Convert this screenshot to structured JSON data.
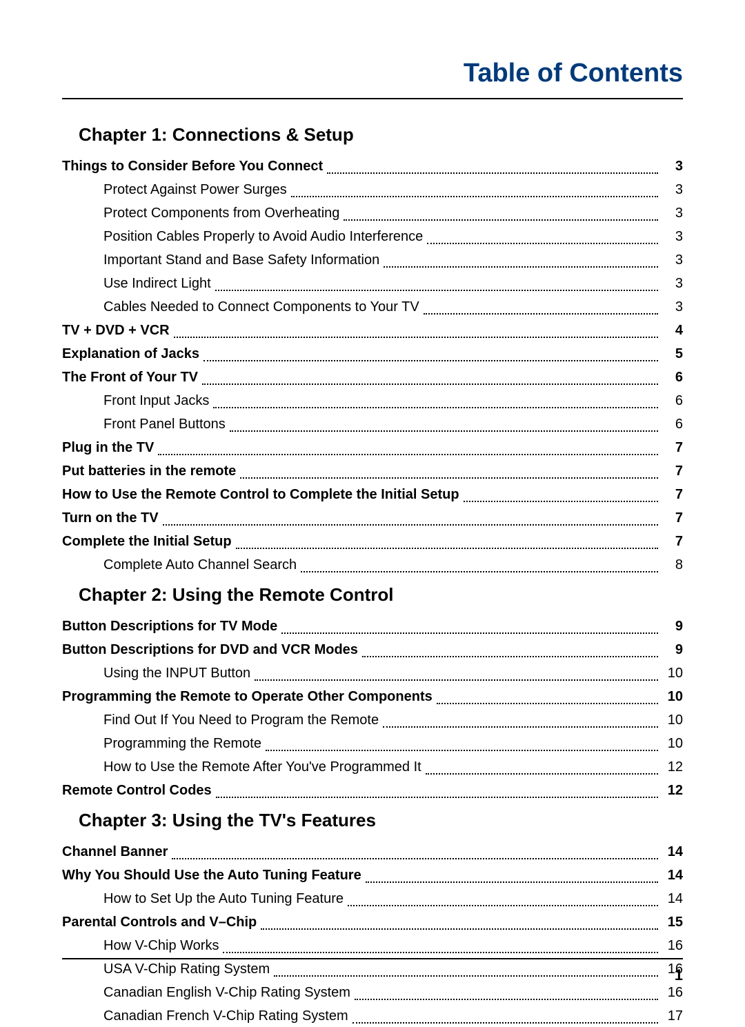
{
  "page_title": "Table of Contents",
  "page_number": "1",
  "colors": {
    "title": "#003a7a",
    "text": "#000000",
    "bg": "#ffffff"
  },
  "sections": [
    {
      "heading": "Chapter 1: Connections & Setup",
      "entries": [
        {
          "level": 1,
          "label": "Things to Consider Before You Connect",
          "page": "3"
        },
        {
          "level": 2,
          "label": "Protect Against Power Surges",
          "page": "3"
        },
        {
          "level": 2,
          "label": "Protect Components from Overheating",
          "page": "3"
        },
        {
          "level": 2,
          "label": "Position Cables Properly to Avoid Audio Interference",
          "page": "3"
        },
        {
          "level": 2,
          "label": "Important Stand and Base Safety Information",
          "page": "3"
        },
        {
          "level": 2,
          "label": "Use Indirect Light",
          "page": "3"
        },
        {
          "level": 2,
          "label": "Cables Needed to Connect Components to Your TV",
          "page": "3"
        },
        {
          "level": 1,
          "label": "TV + DVD + VCR",
          "page": "4"
        },
        {
          "level": 1,
          "label": "Explanation of Jacks",
          "page": "5"
        },
        {
          "level": 1,
          "label": "The Front of Your TV",
          "page": "6"
        },
        {
          "level": 2,
          "label": "Front Input Jacks",
          "page": "6"
        },
        {
          "level": 2,
          "label": "Front Panel Buttons",
          "page": "6"
        },
        {
          "level": 1,
          "label": "Plug in the TV",
          "page": "7"
        },
        {
          "level": 1,
          "label": "Put batteries in the remote",
          "page": "7"
        },
        {
          "level": 1,
          "label": "How to Use the Remote Control to Complete the Initial Setup",
          "page": "7"
        },
        {
          "level": 1,
          "label": "Turn on the TV",
          "page": "7"
        },
        {
          "level": 1,
          "label": "Complete the Initial Setup",
          "page": "7"
        },
        {
          "level": 2,
          "label": "Complete Auto Channel Search",
          "page": "8"
        }
      ]
    },
    {
      "heading": "Chapter 2: Using the Remote Control",
      "entries": [
        {
          "level": 1,
          "label": "Button Descriptions for TV Mode",
          "page": "9"
        },
        {
          "level": 1,
          "label": "Button Descriptions for DVD and VCR Modes",
          "page": "9"
        },
        {
          "level": 2,
          "label": "Using the INPUT Button",
          "page": "10"
        },
        {
          "level": 1,
          "label": "Programming the Remote to Operate Other Components",
          "page": "10"
        },
        {
          "level": 2,
          "label": "Find Out If You Need to Program the Remote",
          "page": "10"
        },
        {
          "level": 2,
          "label": "Programming the Remote",
          "page": "10"
        },
        {
          "level": 2,
          "label": "How to Use the Remote After You've Programmed It",
          "page": "12"
        },
        {
          "level": 1,
          "label": "Remote Control Codes",
          "page": "12"
        }
      ]
    },
    {
      "heading": "Chapter 3: Using the TV's Features",
      "entries": [
        {
          "level": 1,
          "label": "Channel Banner",
          "page": "14"
        },
        {
          "level": 1,
          "label": "Why You Should Use the Auto Tuning Feature",
          "page": "14"
        },
        {
          "level": 2,
          "label": "How to Set Up the Auto Tuning Feature",
          "page": "14"
        },
        {
          "level": 1,
          "label": "Parental Controls and V–Chip",
          "page": "15"
        },
        {
          "level": 2,
          "label": "How V-Chip Works",
          "page": "16"
        },
        {
          "level": 2,
          "label": "USA V-Chip Rating System",
          "page": "16"
        },
        {
          "level": 2,
          "label": "Canadian English V-Chip Rating System",
          "page": "16"
        },
        {
          "level": 2,
          "label": "Canadian French V-Chip Rating System",
          "page": "17"
        }
      ]
    }
  ]
}
